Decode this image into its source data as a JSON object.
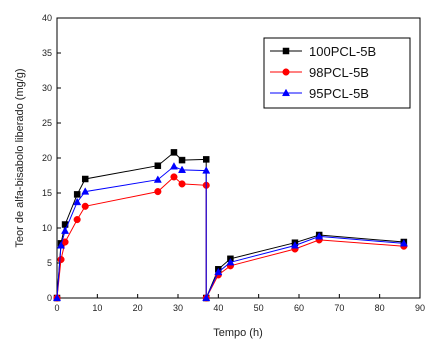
{
  "chart_data": {
    "type": "line",
    "title": "",
    "xlabel": "Tempo (h)",
    "ylabel": "Teor de alfa-bisabolo liberado (mg/g)",
    "xlim": [
      0,
      90
    ],
    "ylim": [
      0,
      40
    ],
    "xticks": [
      0,
      10,
      20,
      30,
      40,
      50,
      60,
      70,
      80,
      90
    ],
    "yticks": [
      0,
      5,
      10,
      15,
      20,
      25,
      30,
      35,
      40
    ],
    "grid": false,
    "legend_position": "top-right",
    "series": [
      {
        "name": "100PCL-5B",
        "color": "#000000",
        "marker": "square",
        "segments": [
          {
            "x": [
              0,
              1,
              2,
              5,
              7,
              25,
              29,
              31,
              37
            ],
            "y": [
              0,
              7.8,
              10.5,
              14.8,
              17.0,
              18.9,
              20.8,
              19.7,
              19.8
            ]
          },
          {
            "x": [
              37,
              40,
              43,
              59,
              65,
              86
            ],
            "y": [
              0,
              4.1,
              5.6,
              7.9,
              9.0,
              8.0
            ]
          }
        ]
      },
      {
        "name": "98PCL-5B",
        "color": "#ff0000",
        "marker": "circle",
        "segments": [
          {
            "x": [
              0,
              1,
              2,
              5,
              7,
              25,
              29,
              31,
              37
            ],
            "y": [
              0,
              5.5,
              8.0,
              11.2,
              13.1,
              15.2,
              17.3,
              16.3,
              16.1
            ]
          },
          {
            "x": [
              37,
              40,
              43,
              59,
              65,
              86
            ],
            "y": [
              0,
              3.3,
              4.6,
              7.0,
              8.3,
              7.4
            ]
          }
        ]
      },
      {
        "name": "95PCL-5B",
        "color": "#0000ff",
        "marker": "triangle",
        "segments": [
          {
            "x": [
              0,
              1,
              2,
              5,
              7,
              25,
              29,
              31,
              37
            ],
            "y": [
              0,
              7.5,
              9.6,
              13.7,
              15.2,
              16.9,
              18.8,
              18.3,
              18.2
            ]
          },
          {
            "x": [
              37,
              40,
              43,
              59,
              65,
              86
            ],
            "y": [
              0,
              3.7,
              5.1,
              7.5,
              8.8,
              7.8
            ]
          }
        ]
      }
    ]
  }
}
